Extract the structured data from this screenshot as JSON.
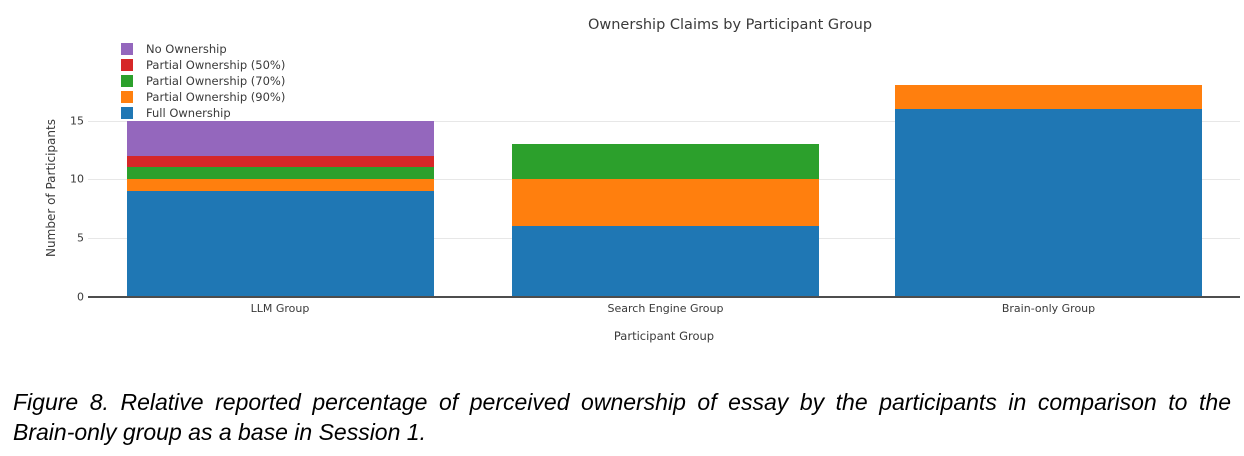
{
  "figure": {
    "title": "Ownership Claims by Participant Group",
    "x_axis_label": "Participant Group",
    "y_axis_label": "Number of Participants"
  },
  "chart_data": {
    "type": "bar",
    "stacked": true,
    "title": "Ownership Claims by Participant Group",
    "xlabel": "Participant Group",
    "ylabel": "Number of Participants",
    "categories": [
      "LLM Group",
      "Search Engine Group",
      "Brain-only Group"
    ],
    "series": [
      {
        "name": "Full Ownership",
        "color": "#1f77b4",
        "values": [
          9,
          6,
          16
        ]
      },
      {
        "name": "Partial Ownership (90%)",
        "color": "#ff7f0e",
        "values": [
          1,
          4,
          2
        ]
      },
      {
        "name": "Partial Ownership (70%)",
        "color": "#2ca02c",
        "values": [
          1,
          3,
          0
        ]
      },
      {
        "name": "Partial Ownership (50%)",
        "color": "#d62728",
        "values": [
          1,
          0,
          0
        ]
      },
      {
        "name": "No Ownership",
        "color": "#9467bd",
        "values": [
          3,
          0,
          0
        ]
      }
    ],
    "totals": [
      15,
      13,
      18
    ],
    "legend_order_top_to_bottom": [
      "No Ownership",
      "Partial Ownership (50%)",
      "Partial Ownership (70%)",
      "Partial Ownership (90%)",
      "Full Ownership"
    ],
    "legend_position": "top-left",
    "y_ticks": [
      0,
      5,
      10,
      15
    ],
    "ylim": [
      0,
      19
    ],
    "grid": "horizontal"
  },
  "caption": {
    "line1": "Figure 8. Relative reported percentage of perceived ownership of essay by the participants in comparison to the",
    "line2": "Brain-only group as a base in Session 1."
  }
}
